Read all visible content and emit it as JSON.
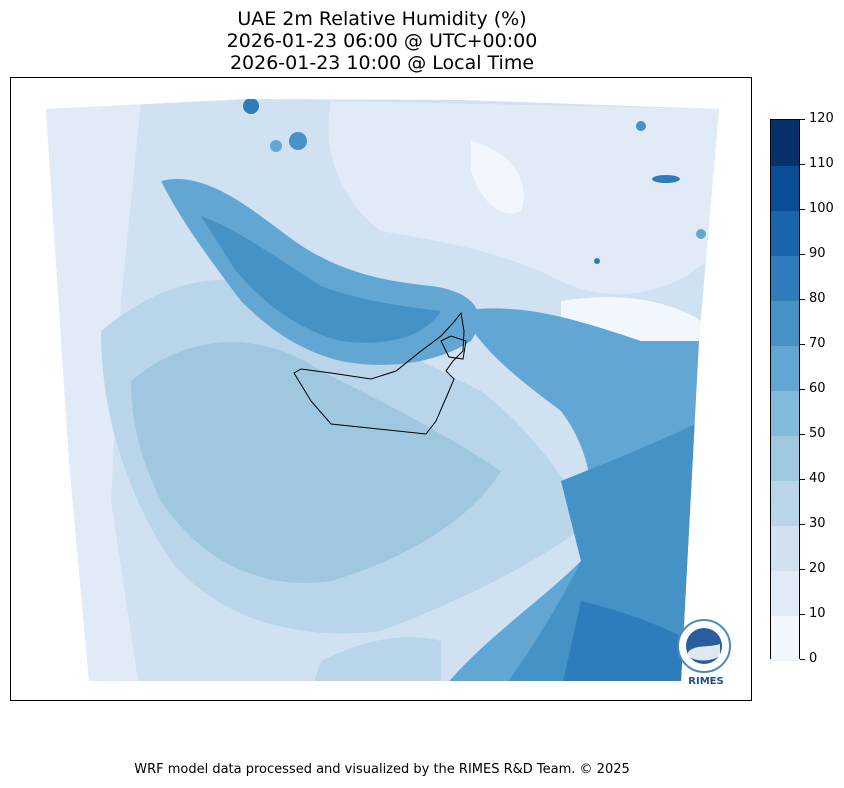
{
  "title": {
    "line1": "UAE 2m Relative Humidity (%)",
    "line2": "2026-01-23 06:00 @ UTC+00:00",
    "line3": "2026-01-23 10:00 @ Local Time"
  },
  "colorbar": {
    "ticks": [
      "0",
      "10",
      "20",
      "30",
      "40",
      "50",
      "60",
      "70",
      "80",
      "90",
      "100",
      "110",
      "120"
    ],
    "colors": [
      "#f2f7fd",
      "#e1ebf7",
      "#d0e1f2",
      "#b9d5ea",
      "#9fc8e0",
      "#82badb",
      "#62a7d3",
      "#4592c7",
      "#2e7cbc",
      "#1865ac",
      "#084d96",
      "#08306b"
    ]
  },
  "logo": {
    "text": "RIMES"
  },
  "footer": "WRF model data processed and visualized by the RIMES R&D Team. © 2025"
}
